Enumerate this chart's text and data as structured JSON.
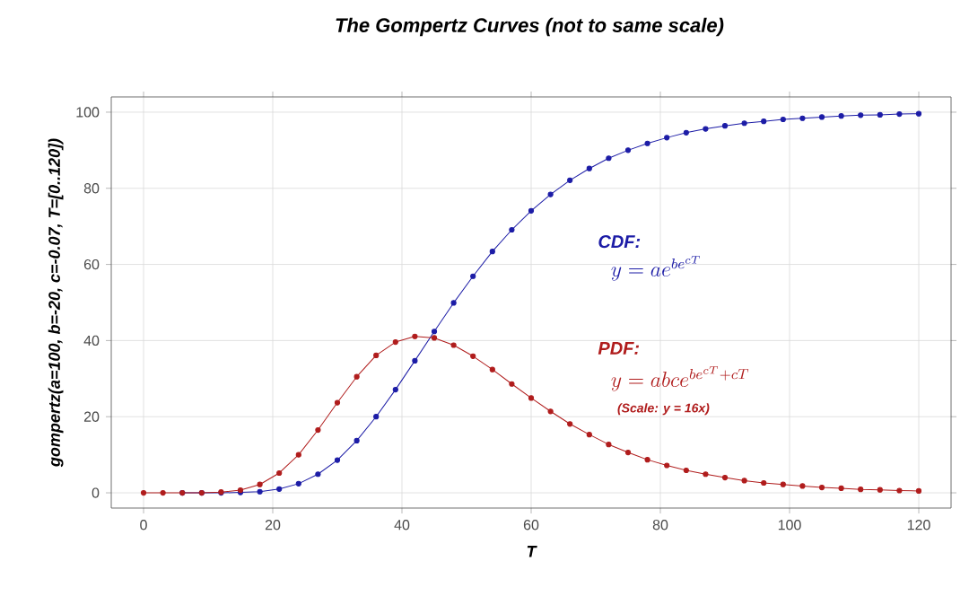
{
  "chart_data": {
    "type": "line",
    "title": "The Gompertz Curves (not to same scale)",
    "xlabel": "T",
    "ylabel": "gompertz(a=100, b=-20, c=-0.07, T=[0..120])",
    "x": [
      0,
      3,
      6,
      9,
      12,
      15,
      18,
      21,
      24,
      27,
      30,
      33,
      36,
      39,
      42,
      45,
      48,
      51,
      54,
      57,
      60,
      63,
      66,
      69,
      72,
      75,
      78,
      81,
      84,
      87,
      90,
      93,
      96,
      99,
      102,
      105,
      108,
      111,
      114,
      117,
      120
    ],
    "series": [
      {
        "color": "#1c1ca6",
        "values": [
          null,
          null,
          0,
          0,
          0,
          0.1,
          0.3,
          1.0,
          2.4,
          4.9,
          8.6,
          13.7,
          20.0,
          27.1,
          34.7,
          42.4,
          49.9,
          56.9,
          63.4,
          69.1,
          74.1,
          78.4,
          82.1,
          85.2,
          87.9,
          90.0,
          91.8,
          93.3,
          94.6,
          95.6,
          96.4,
          97.1,
          97.6,
          98.1,
          98.4,
          98.7,
          99.0,
          99.2,
          99.3,
          99.5,
          99.6
        ]
      },
      {
        "color": "#b01c1c",
        "values": [
          0,
          0,
          0,
          0,
          0.2,
          0.7,
          2.2,
          5.2,
          10.0,
          16.5,
          23.7,
          30.5,
          36.1,
          39.6,
          41.1,
          40.7,
          38.8,
          35.9,
          32.4,
          28.6,
          24.9,
          21.4,
          18.1,
          15.3,
          12.7,
          10.6,
          8.7,
          7.2,
          5.9,
          4.9,
          4.0,
          3.2,
          2.6,
          2.2,
          1.8,
          1.4,
          1.2,
          0.9,
          0.8,
          0.6,
          0.5
        ]
      }
    ],
    "annotations": [
      "CDF:",
      "y = ae^{be^{cT}}",
      "PDF:",
      "y = abce^{be^{cT}+cT}",
      "(Scale: y = 16x)"
    ],
    "xlim": [
      -5,
      125
    ],
    "ylim": [
      -4,
      104
    ],
    "xticks": [
      0,
      20,
      40,
      60,
      80,
      100,
      120
    ],
    "yticks": [
      0,
      20,
      40,
      60,
      80,
      100
    ],
    "grid": true,
    "marker": "circle",
    "line_style": "solid"
  }
}
